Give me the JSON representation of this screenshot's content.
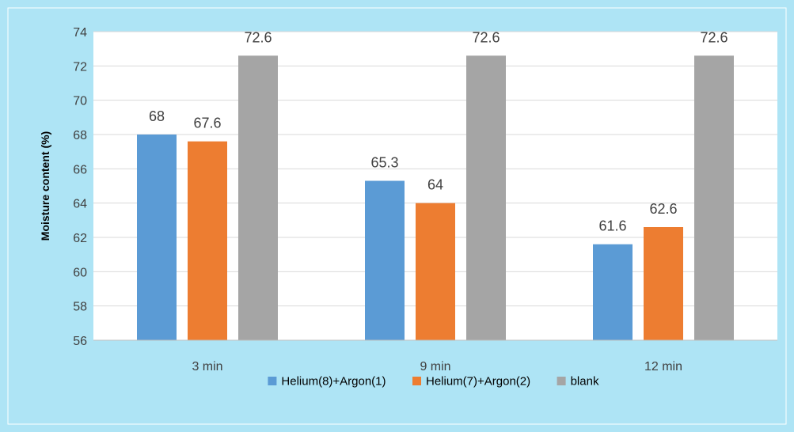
{
  "colors": {
    "background": "#aee4f5",
    "plot_background": "#ffffff",
    "gridline": "#d9d9d9",
    "axis_line": "#bfbfbf",
    "text": "#404040",
    "series": [
      "#5b9bd5",
      "#ed7d31",
      "#a5a5a5"
    ]
  },
  "chart_data": {
    "type": "bar",
    "title": "",
    "xlabel": "",
    "ylabel": "Moisture content (%)",
    "categories": [
      "3 min",
      "9 min",
      "12 min"
    ],
    "series": [
      {
        "name": "Helium(8)+Argon(1)",
        "values": [
          68,
          65.3,
          61.6
        ]
      },
      {
        "name": "Helium(7)+Argon(2)",
        "values": [
          67.6,
          64,
          62.6
        ]
      },
      {
        "name": "blank",
        "values": [
          72.6,
          72.6,
          72.6
        ]
      }
    ],
    "ylim": [
      56,
      74
    ],
    "yticks": [
      56,
      58,
      60,
      62,
      64,
      66,
      68,
      70,
      72,
      74
    ],
    "grid": true,
    "legend_position": "bottom",
    "data_labels": true
  }
}
